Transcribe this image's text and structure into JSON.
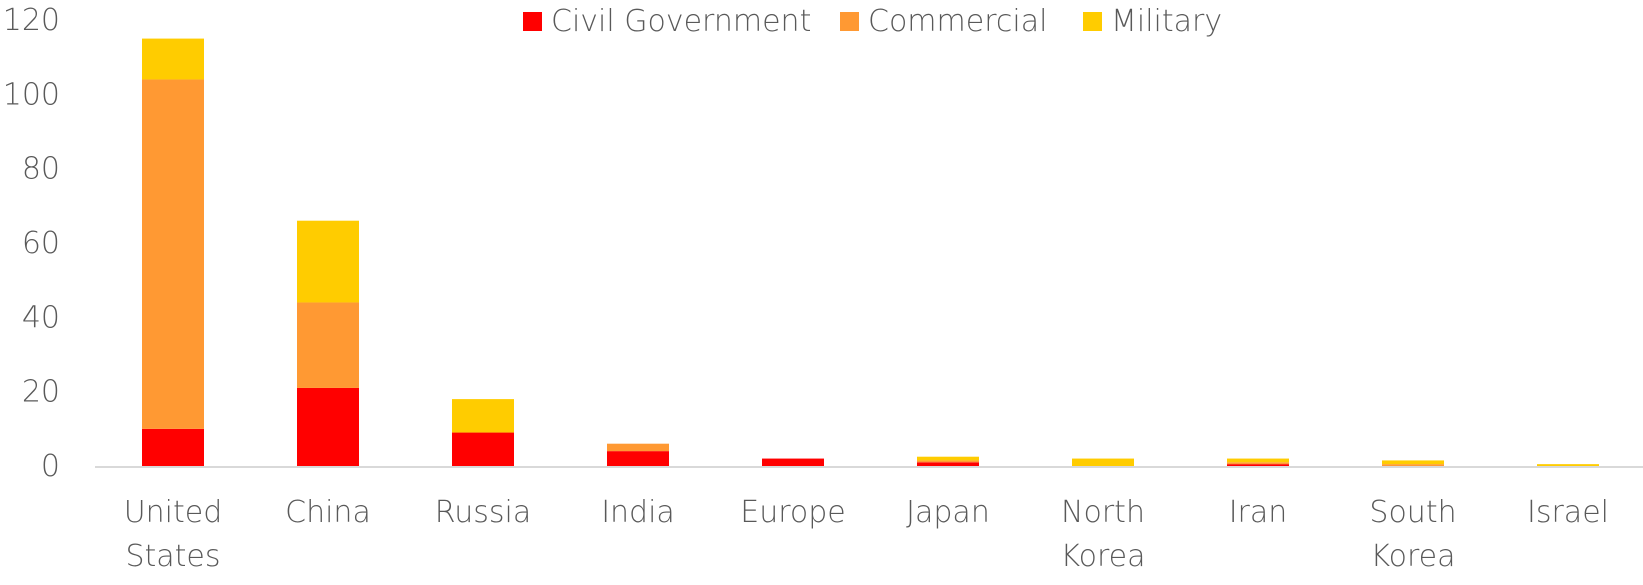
{
  "chart_data": {
    "type": "bar",
    "stacked": true,
    "categories": [
      [
        "United",
        "States"
      ],
      [
        "China"
      ],
      [
        "Russia"
      ],
      [
        "India"
      ],
      [
        "Europe"
      ],
      [
        "Japan"
      ],
      [
        "North",
        "Korea"
      ],
      [
        "Iran"
      ],
      [
        "South",
        "Korea"
      ],
      [
        "Israel"
      ]
    ],
    "series": [
      {
        "name": "Civil Government",
        "color": "#ff0000",
        "values": [
          10,
          21,
          9,
          4,
          2,
          1,
          0,
          0.5,
          0,
          0
        ]
      },
      {
        "name": "Commercial",
        "color": "#ff9933",
        "values": [
          94,
          23,
          0,
          2,
          0,
          0.5,
          0,
          0.5,
          0.5,
          0
        ]
      },
      {
        "name": "Military",
        "color": "#ffcc00",
        "values": [
          11,
          22,
          9,
          0,
          0,
          1,
          2,
          1,
          1,
          0.5
        ]
      }
    ],
    "ylim": [
      0,
      120
    ],
    "yticks": [
      0,
      20,
      40,
      60,
      80,
      100,
      120
    ],
    "grid": false,
    "legend": "top-center",
    "title": "",
    "xlabel": "",
    "ylabel": ""
  }
}
